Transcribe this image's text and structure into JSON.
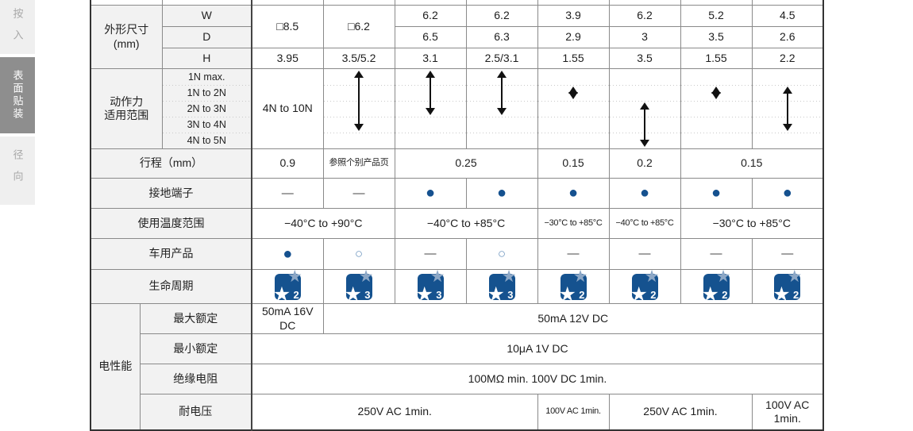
{
  "sidebar": {
    "tabs": [
      {
        "label": "按入",
        "active": false
      },
      {
        "label": "表面贴装",
        "active": true
      },
      {
        "label": "径向",
        "active": false
      }
    ]
  },
  "icons": {
    "star": "★"
  },
  "symbols": {
    "filled": "●",
    "hollow": "○",
    "dash": "—"
  },
  "colors": {
    "accent_blue": "#15518f",
    "badge_blue": "#15528f",
    "badge_star_light": "#8ca7c6",
    "header_bg": "#f2f2f2",
    "sidebar_active_bg": "#8e8e8e"
  },
  "table": {
    "size": {
      "title": "外形尺寸",
      "unit": "(mm)",
      "row_labels": {
        "w": "W",
        "d": "D",
        "h": "H"
      },
      "merged_wd": [
        "□8.5",
        "□6.2"
      ],
      "w": [
        "6.2",
        "6.2",
        "3.9",
        "6.2",
        "5.2",
        "4.5"
      ],
      "d": [
        "6.5",
        "6.3",
        "2.9",
        "3",
        "3.5",
        "2.6"
      ],
      "h": [
        "3.95",
        "3.5/5.2",
        "3.1",
        "2.5/3.1",
        "1.55",
        "3.5",
        "1.55",
        "2.2"
      ]
    },
    "force": {
      "title_line1": "动作力",
      "title_line2": "适用范围",
      "labels": [
        "1N max.",
        "1N to 2N",
        "2N to 3N",
        "3N to 4N",
        "4N to 5N"
      ],
      "cells": [
        {
          "type": "text",
          "text": "4N to 10N"
        },
        {
          "type": "arrow",
          "from": 0,
          "to": 3
        },
        {
          "type": "arrow",
          "from": 0,
          "to": 2
        },
        {
          "type": "arrow",
          "from": 0,
          "to": 2
        },
        {
          "type": "arrow",
          "from": 1,
          "to": 1
        },
        {
          "type": "arrow",
          "from": 2,
          "to": 4
        },
        {
          "type": "arrow",
          "from": 1,
          "to": 1
        },
        {
          "type": "arrow",
          "from": 1,
          "to": 3
        }
      ]
    },
    "travel": {
      "label": "行程（mm）",
      "cells": [
        {
          "text": "0.9",
          "span": 1
        },
        {
          "text": "参照个别产品页",
          "span": 1,
          "small": true
        },
        {
          "text": "0.25",
          "span": 2
        },
        {
          "text": "0.15",
          "span": 1
        },
        {
          "text": "0.2",
          "span": 1
        },
        {
          "text": "0.15",
          "span": 2
        }
      ]
    },
    "ground": {
      "label": "接地端子",
      "cells": [
        "dash",
        "dash",
        "filled",
        "filled",
        "filled",
        "filled",
        "filled",
        "filled"
      ]
    },
    "temperature": {
      "label": "使用温度范围",
      "cells": [
        {
          "text": "−40°C to +90°C",
          "span": 2
        },
        {
          "text": "−40°C to +85°C",
          "span": 2
        },
        {
          "text": "−30°C to +85°C",
          "span": 1,
          "small": true
        },
        {
          "text": "−40°C to +85°C",
          "span": 1,
          "small": true
        },
        {
          "text": "−30°C to +85°C",
          "span": 2
        }
      ]
    },
    "automotive": {
      "label": "车用产品",
      "cells": [
        "filled",
        "hollow",
        "dash",
        "hollow",
        "dash",
        "dash",
        "dash",
        "dash"
      ]
    },
    "lifecycle": {
      "label": "生命周期",
      "values": [
        "2",
        "3",
        "3",
        "3",
        "2",
        "2",
        "2",
        "2"
      ]
    },
    "electrical": {
      "title": "电性能",
      "max_rating": {
        "label": "最大额定",
        "cells": [
          {
            "text": "50mA 16V DC",
            "span": 1
          },
          {
            "text": "50mA 12V DC",
            "span": 7
          }
        ]
      },
      "min_rating": {
        "label": "最小额定",
        "value": "10μA 1V DC"
      },
      "insulation": {
        "label": "绝缘电阻",
        "value": "100MΩ min. 100V DC 1min."
      },
      "dielectric": {
        "label": "耐电压",
        "cells": [
          {
            "text": "250V AC 1min.",
            "span": 4
          },
          {
            "text": "100V AC 1min.",
            "span": 1,
            "small": true
          },
          {
            "text": "250V AC 1min.",
            "span": 2
          },
          {
            "text": "100V AC 1min.",
            "span": 1
          }
        ]
      }
    }
  }
}
